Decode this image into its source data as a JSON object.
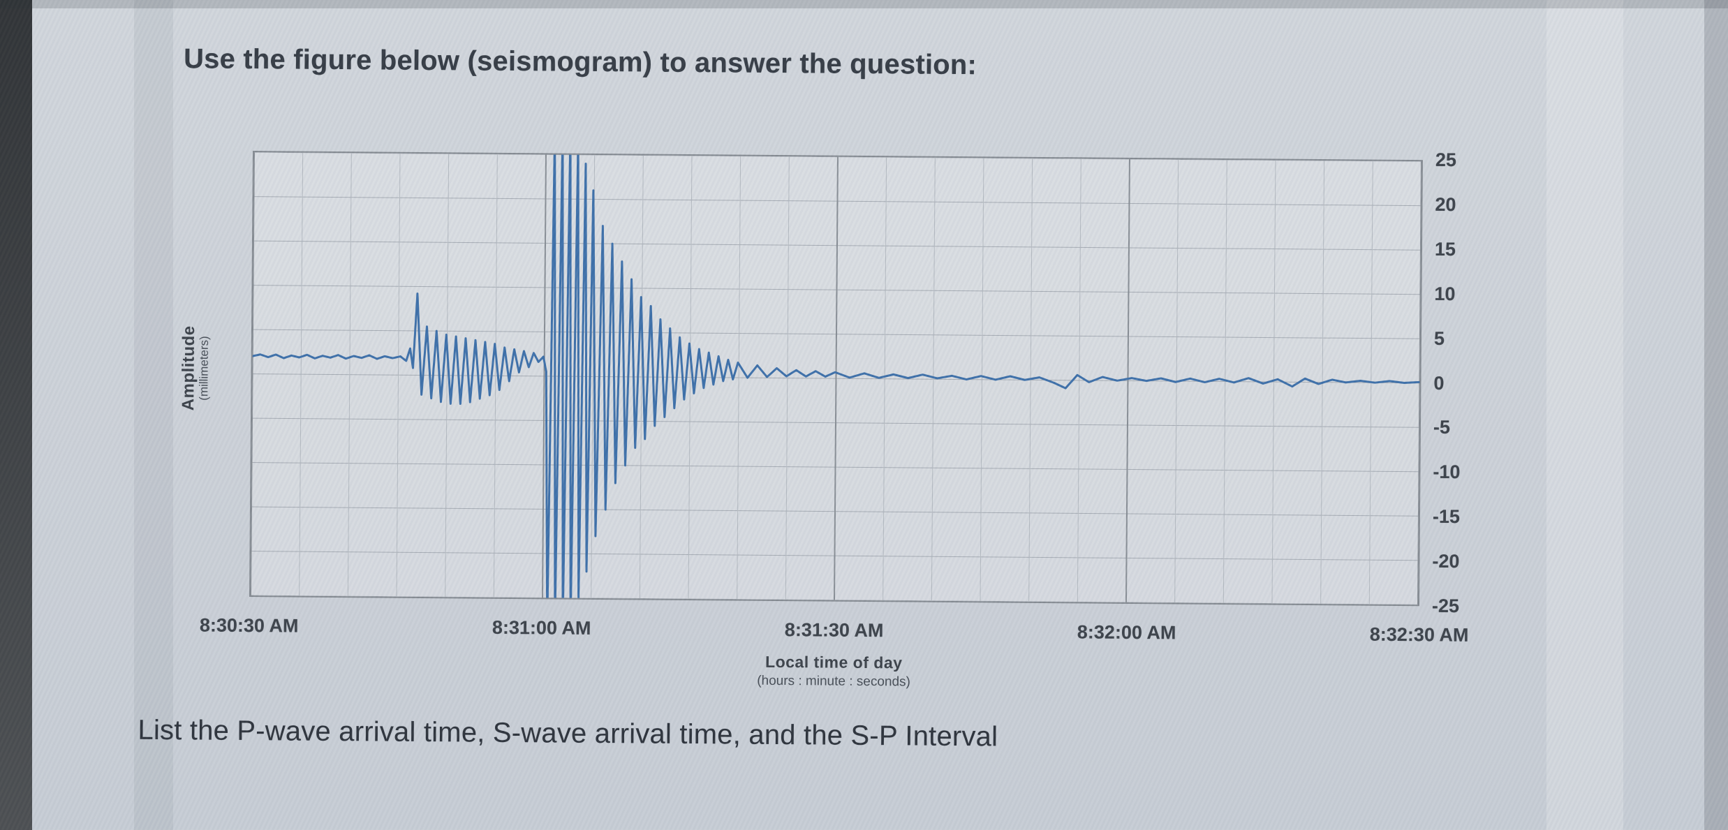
{
  "page": {
    "heading": "Use the figure below (seismogram) to answer the question:",
    "question": "List the P-wave arrival time, S-wave arrival time, and the S-P Interval"
  },
  "chart_data": {
    "type": "line",
    "title": "",
    "ylabel": "Amplitude",
    "ylabel_units": "(millimeters)",
    "xlabel": "Local time of day",
    "xlabel_units": "(hours : minute : seconds)",
    "x_range_seconds": [
      0,
      120
    ],
    "x_tick_labels": [
      "8:30:30 AM",
      "8:31:00 AM",
      "8:31:30 AM",
      "8:32:00 AM",
      "8:32:30 AM"
    ],
    "x_tick_seconds": [
      0,
      30,
      60,
      90,
      120
    ],
    "x_minor_gridline_step_seconds": 5,
    "x_major_gridline_step_seconds": 30,
    "ylim": [
      -25,
      25
    ],
    "y_ticks": [
      "25",
      "20",
      "15",
      "10",
      "5",
      "0",
      "-5",
      "-10",
      "-15",
      "-20",
      "-25"
    ],
    "y_gridline_step": 5,
    "grid": "on",
    "legend": "none",
    "trace_color": "#3b6ea8",
    "annotations": {
      "p_wave_onset_as_depicted": "≈ 8:30:46 AM",
      "s_wave_onset_as_depicted": "≈ 8:31:02 AM",
      "s_p_interval_as_depicted": "≈ 16 s"
    },
    "trace": [
      [
        0,
        2.0
      ],
      [
        0.8,
        2.2
      ],
      [
        1.6,
        1.9
      ],
      [
        2.4,
        2.2
      ],
      [
        3.2,
        1.8
      ],
      [
        4.0,
        2.1
      ],
      [
        4.8,
        1.9
      ],
      [
        5.6,
        2.2
      ],
      [
        6.4,
        1.8
      ],
      [
        7.2,
        2.1
      ],
      [
        8.0,
        1.9
      ],
      [
        8.8,
        2.2
      ],
      [
        9.6,
        1.8
      ],
      [
        10.4,
        2.1
      ],
      [
        11.2,
        1.9
      ],
      [
        12.0,
        2.2
      ],
      [
        12.8,
        1.8
      ],
      [
        13.6,
        2.1
      ],
      [
        14.4,
        1.9
      ],
      [
        15.2,
        2.1
      ],
      [
        15.8,
        1.6
      ],
      [
        16.2,
        3.0
      ],
      [
        16.5,
        0.8
      ],
      [
        16.9,
        9.2
      ],
      [
        17.4,
        -2.2
      ],
      [
        17.9,
        5.5
      ],
      [
        18.4,
        -2.6
      ],
      [
        18.9,
        5.0
      ],
      [
        19.4,
        -3.0
      ],
      [
        19.9,
        4.6
      ],
      [
        20.4,
        -3.2
      ],
      [
        20.9,
        4.4
      ],
      [
        21.4,
        -3.2
      ],
      [
        21.9,
        4.2
      ],
      [
        22.4,
        -3.0
      ],
      [
        22.9,
        4.0
      ],
      [
        23.4,
        -2.6
      ],
      [
        23.9,
        3.8
      ],
      [
        24.4,
        -2.2
      ],
      [
        24.9,
        3.6
      ],
      [
        25.4,
        -1.6
      ],
      [
        25.9,
        3.2
      ],
      [
        26.4,
        -0.6
      ],
      [
        26.9,
        3.0
      ],
      [
        27.4,
        0.4
      ],
      [
        27.9,
        2.8
      ],
      [
        28.4,
        1.0
      ],
      [
        28.9,
        2.6
      ],
      [
        29.4,
        1.6
      ],
      [
        29.9,
        2.2
      ],
      [
        30.2,
        0.5
      ],
      [
        30.5,
        -28
      ],
      [
        30.9,
        28
      ],
      [
        31.3,
        -28
      ],
      [
        31.7,
        28
      ],
      [
        32.1,
        -28
      ],
      [
        32.5,
        28
      ],
      [
        32.9,
        -28
      ],
      [
        33.3,
        27
      ],
      [
        33.7,
        -25
      ],
      [
        34.1,
        24
      ],
      [
        34.5,
        -22
      ],
      [
        34.9,
        21
      ],
      [
        35.4,
        -18
      ],
      [
        35.9,
        17
      ],
      [
        36.4,
        -15
      ],
      [
        36.9,
        15
      ],
      [
        37.4,
        -12
      ],
      [
        37.9,
        13
      ],
      [
        38.4,
        -10
      ],
      [
        38.9,
        11
      ],
      [
        39.4,
        -8
      ],
      [
        39.9,
        9
      ],
      [
        40.4,
        -7
      ],
      [
        40.9,
        8
      ],
      [
        41.4,
        -5.5
      ],
      [
        41.9,
        6.5
      ],
      [
        42.4,
        -4.5
      ],
      [
        42.9,
        5.5
      ],
      [
        43.4,
        -3.5
      ],
      [
        43.9,
        4.5
      ],
      [
        44.4,
        -2.5
      ],
      [
        44.9,
        3.8
      ],
      [
        45.4,
        -1.8
      ],
      [
        45.9,
        3.2
      ],
      [
        46.4,
        -1.2
      ],
      [
        46.9,
        2.8
      ],
      [
        47.4,
        -0.8
      ],
      [
        47.9,
        2.4
      ],
      [
        48.4,
        -0.4
      ],
      [
        48.9,
        2.0
      ],
      [
        49.4,
        -0.2
      ],
      [
        49.9,
        1.7
      ],
      [
        50.9,
        0.0
      ],
      [
        51.9,
        1.4
      ],
      [
        52.9,
        0.1
      ],
      [
        53.9,
        1.1
      ],
      [
        54.9,
        0.2
      ],
      [
        55.9,
        0.9
      ],
      [
        56.9,
        0.2
      ],
      [
        57.9,
        0.8
      ],
      [
        58.9,
        0.2
      ],
      [
        59.9,
        0.7
      ],
      [
        61.4,
        0.1
      ],
      [
        62.9,
        0.6
      ],
      [
        64.4,
        0.1
      ],
      [
        65.9,
        0.5
      ],
      [
        67.4,
        0.1
      ],
      [
        68.9,
        0.5
      ],
      [
        70.4,
        0.1
      ],
      [
        71.9,
        0.4
      ],
      [
        73.4,
        0.0
      ],
      [
        74.9,
        0.4
      ],
      [
        76.4,
        0.0
      ],
      [
        77.9,
        0.4
      ],
      [
        79.4,
        0.0
      ],
      [
        80.9,
        0.3
      ],
      [
        82.4,
        -0.3
      ],
      [
        83.6,
        -0.9
      ],
      [
        84.8,
        0.6
      ],
      [
        86.0,
        -0.2
      ],
      [
        87.4,
        0.4
      ],
      [
        88.9,
        0.0
      ],
      [
        90.4,
        0.3
      ],
      [
        91.9,
        0.0
      ],
      [
        93.4,
        0.3
      ],
      [
        94.9,
        -0.1
      ],
      [
        96.4,
        0.3
      ],
      [
        97.9,
        -0.1
      ],
      [
        99.4,
        0.3
      ],
      [
        100.9,
        -0.1
      ],
      [
        102.4,
        0.4
      ],
      [
        103.9,
        -0.2
      ],
      [
        105.4,
        0.3
      ],
      [
        106.9,
        -0.5
      ],
      [
        108.2,
        0.4
      ],
      [
        109.6,
        -0.2
      ],
      [
        111.0,
        0.3
      ],
      [
        112.4,
        0.0
      ],
      [
        113.9,
        0.2
      ],
      [
        115.4,
        0.0
      ],
      [
        116.9,
        0.2
      ],
      [
        118.4,
        0.0
      ],
      [
        120,
        0.1
      ]
    ]
  }
}
